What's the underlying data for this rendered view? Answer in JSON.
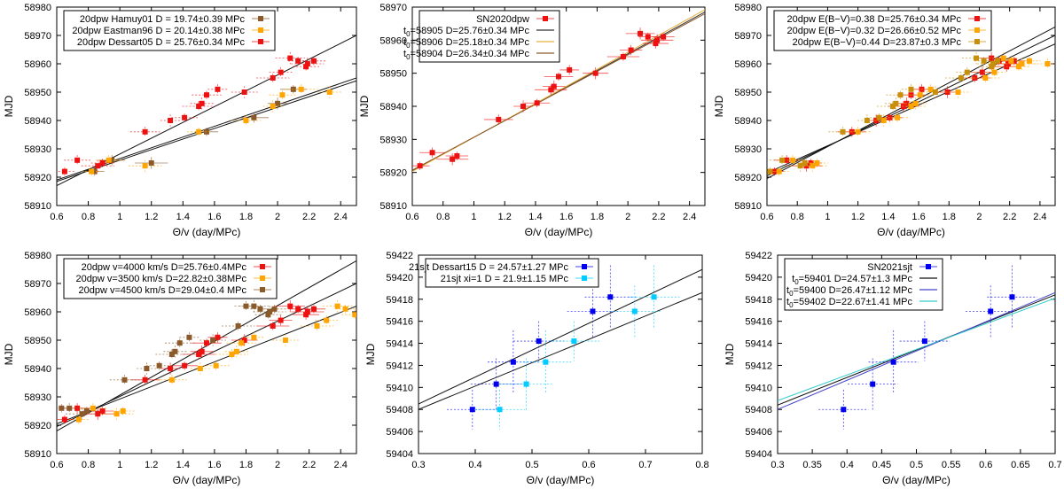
{
  "chart_data": [
    {
      "type": "scatter",
      "xlabel": "Θ/v (day/MPc)",
      "ylabel": "MJD",
      "xlim": [
        0.6,
        2.5
      ],
      "ylim": [
        58910,
        58980
      ],
      "xticks": [
        0.6,
        0.8,
        1,
        1.2,
        1.4,
        1.6,
        1.8,
        2,
        2.2,
        2.4
      ],
      "xtick_labels": [
        "0.6",
        "0.8",
        "1",
        "1.2",
        "1.4",
        "1.6",
        "1.8",
        "2",
        "2.2",
        "2.4"
      ],
      "yticks": [
        58910,
        58920,
        58930,
        58940,
        58950,
        58960,
        58970,
        58980
      ],
      "ytick_labels": [
        "58910",
        "58920",
        "58930",
        "58940",
        "58950",
        "58960",
        "58970",
        "58980"
      ],
      "grid": false,
      "legend_position": "top-left",
      "series": [
        {
          "name": "20dpw Hamuy01 D = 19.74±0.39 MPc",
          "kind": "points",
          "color": "#8b5a2b",
          "x": [
            0.84,
            0.95,
            1.2,
            1.55,
            1.85,
            2.0,
            2.1
          ],
          "y": [
            58922,
            58926,
            58925,
            58936,
            58941,
            58946,
            58951
          ]
        },
        {
          "name": "20dpw Eastman96 D = 20.14±0.38 MPc",
          "kind": "points",
          "color": "#ffa500",
          "x": [
            0.82,
            0.93,
            1.16,
            1.5,
            1.8,
            1.97,
            2.03,
            2.15,
            2.33
          ],
          "y": [
            58922,
            58926,
            58924,
            58936,
            58940,
            58945,
            58949,
            58951,
            58950
          ]
        },
        {
          "name": "20dpw Dessart05 D = 25.76±0.34 MPc",
          "kind": "points",
          "color": "#ee1111",
          "x": [
            0.65,
            0.73,
            0.86,
            0.89,
            1.16,
            1.32,
            1.41,
            1.5,
            1.52,
            1.55,
            1.62,
            1.79,
            1.97,
            2.02,
            2.08,
            2.13,
            2.18,
            2.19,
            2.23
          ],
          "y": [
            58922,
            58926,
            58924,
            58925,
            58936,
            58940,
            58941,
            58945,
            58946,
            58949,
            58951,
            58950,
            58955,
            58957,
            58962,
            58961,
            58959,
            58960,
            58961
          ]
        }
      ],
      "lines": [
        {
          "color": "#111111",
          "x": [
            0.6,
            2.5
          ],
          "y": [
            58917,
            58970
          ]
        },
        {
          "color": "#111111",
          "x": [
            0.6,
            2.5
          ],
          "y": [
            58919,
            58955
          ]
        },
        {
          "color": "#111111",
          "x": [
            0.6,
            2.5
          ],
          "y": [
            58918.5,
            58954
          ]
        }
      ]
    },
    {
      "type": "scatter",
      "xlabel": "Θ/v (day/MPc)",
      "ylabel": "MJD",
      "xlim": [
        0.6,
        2.5
      ],
      "ylim": [
        58910,
        58970
      ],
      "xticks": [
        0.6,
        0.8,
        1,
        1.2,
        1.4,
        1.6,
        1.8,
        2,
        2.2,
        2.4
      ],
      "xtick_labels": [
        "0.6",
        "0.8",
        "1",
        "1.2",
        "1.4",
        "1.6",
        "1.8",
        "2",
        "2.2",
        "2.4"
      ],
      "yticks": [
        58910,
        58920,
        58930,
        58940,
        58950,
        58960,
        58970
      ],
      "ytick_labels": [
        "58910",
        "58920",
        "58930",
        "58940",
        "58950",
        "58960",
        "58970"
      ],
      "grid": false,
      "legend_position": "top-left",
      "series": [
        {
          "name": "SN2020dpw",
          "kind": "points",
          "color": "#ee1111",
          "x": [
            0.65,
            0.73,
            0.86,
            0.89,
            1.16,
            1.32,
            1.41,
            1.5,
            1.52,
            1.55,
            1.62,
            1.79,
            1.97,
            2.02,
            2.08,
            2.13,
            2.18,
            2.19,
            2.23
          ],
          "y": [
            58922,
            58926,
            58924,
            58925,
            58936,
            58940,
            58941,
            58945,
            58946,
            58949,
            58951,
            58950,
            58955,
            58957,
            58962,
            58961,
            58959,
            58960,
            58961
          ]
        },
        {
          "name_prefix": "t",
          "name_sub": "0",
          "name_rest": "=58905 D=25.76±0.34 MPc",
          "kind": "line",
          "color": "#333333",
          "x": [
            0.6,
            2.5
          ],
          "y": [
            58920.5,
            58968.5
          ]
        },
        {
          "name_prefix": "t",
          "name_sub": "0",
          "name_rest": "=58906 D=25.18±0.34 MPc",
          "kind": "line",
          "color": "#e8b040",
          "x": [
            0.6,
            2.5
          ],
          "y": [
            58920.3,
            58969.2
          ]
        },
        {
          "name_prefix": "t",
          "name_sub": "0",
          "name_rest": "=58904 D=26.34±0.34 MPc",
          "kind": "line",
          "color": "#8b5a2b",
          "x": [
            0.6,
            2.5
          ],
          "y": [
            58920.7,
            58968
          ]
        }
      ]
    },
    {
      "type": "scatter",
      "xlabel": "Θ/v (day/MPc)",
      "ylabel": "MJD",
      "xlim": [
        0.6,
        2.5
      ],
      "ylim": [
        58910,
        58980
      ],
      "xticks": [
        0.6,
        0.8,
        1,
        1.2,
        1.4,
        1.6,
        1.8,
        2,
        2.2,
        2.4
      ],
      "xtick_labels": [
        "0.6",
        "0.8",
        "1",
        "1.2",
        "1.4",
        "1.6",
        "1.8",
        "2",
        "2.2",
        "2.4"
      ],
      "yticks": [
        58910,
        58920,
        58930,
        58940,
        58950,
        58960,
        58970,
        58980
      ],
      "ytick_labels": [
        "58910",
        "58920",
        "58930",
        "58940",
        "58950",
        "58960",
        "58970",
        "58980"
      ],
      "grid": false,
      "legend_position": "top-left",
      "series": [
        {
          "name": "20dpw E(B−V)=0.38 D=25.76±0.34 MPc",
          "kind": "points",
          "color": "#ee1111",
          "x": [
            0.65,
            0.73,
            0.86,
            0.89,
            1.16,
            1.32,
            1.41,
            1.5,
            1.52,
            1.55,
            1.62,
            1.79,
            1.97,
            2.02,
            2.08,
            2.13,
            2.18,
            2.19,
            2.23
          ],
          "y": [
            58922,
            58926,
            58924,
            58925,
            58936,
            58940,
            58941,
            58945,
            58946,
            58949,
            58951,
            58950,
            58955,
            58957,
            58962,
            58961,
            58959,
            58960,
            58961
          ]
        },
        {
          "name": "20dpw E(B−V)=0.32 D=26.66±0.52 MPc",
          "kind": "points",
          "color": "#ffa500",
          "x": [
            0.68,
            0.77,
            0.9,
            0.93,
            1.2,
            1.37,
            1.46,
            1.55,
            1.58,
            1.61,
            1.68,
            1.86,
            2.04,
            2.1,
            2.16,
            2.21,
            2.26,
            2.28,
            2.33,
            2.45
          ],
          "y": [
            58922,
            58926,
            58924,
            58925,
            58936,
            58940,
            58941,
            58945,
            58946,
            58949,
            58951,
            58950,
            58955,
            58957,
            58962,
            58961,
            58959,
            58960,
            58961,
            58960
          ]
        },
        {
          "name": "20dpw E(B−V)=0.44 D=23.87±0.3 MPc",
          "kind": "points",
          "color": "#c8900a",
          "x": [
            0.62,
            0.7,
            0.82,
            0.85,
            1.1,
            1.26,
            1.34,
            1.43,
            1.45,
            1.48,
            1.55,
            1.71,
            1.88,
            1.92,
            1.98,
            2.03,
            2.08,
            2.09,
            2.12
          ],
          "y": [
            58922,
            58926,
            58924,
            58925,
            58936,
            58940,
            58941,
            58945,
            58946,
            58949,
            58951,
            58950,
            58955,
            58957,
            58962,
            58961,
            58959,
            58960,
            58961
          ]
        }
      ],
      "lines": [
        {
          "color": "#111111",
          "x": [
            0.6,
            2.5
          ],
          "y": [
            58919.5,
            58973
          ]
        },
        {
          "color": "#111111",
          "x": [
            0.6,
            2.5
          ],
          "y": [
            58920.5,
            58970
          ]
        },
        {
          "color": "#111111",
          "x": [
            0.6,
            2.5
          ],
          "y": [
            58921.5,
            58967
          ]
        }
      ]
    },
    {
      "type": "scatter",
      "xlabel": "Θ/v (day/MPc)",
      "ylabel": "MJD",
      "xlim": [
        0.6,
        2.5
      ],
      "ylim": [
        58910,
        58980
      ],
      "xticks": [
        0.6,
        0.8,
        1,
        1.2,
        1.4,
        1.6,
        1.8,
        2,
        2.2,
        2.4
      ],
      "xtick_labels": [
        "0.6",
        "0.8",
        "1",
        "1.2",
        "1.4",
        "1.6",
        "1.8",
        "2",
        "2.2",
        "2.4"
      ],
      "yticks": [
        58910,
        58920,
        58930,
        58940,
        58950,
        58960,
        58970,
        58980
      ],
      "ytick_labels": [
        "58910",
        "58920",
        "58930",
        "58940",
        "58950",
        "58960",
        "58970",
        "58980"
      ],
      "grid": false,
      "legend_position": "top-left",
      "series": [
        {
          "name": "20dpw v=4000 km/s D=25.76±0.4MPc",
          "kind": "points",
          "color": "#ee1111",
          "x": [
            0.65,
            0.73,
            0.86,
            0.89,
            1.16,
            1.32,
            1.41,
            1.5,
            1.52,
            1.55,
            1.62,
            1.79,
            1.97,
            2.02,
            2.08,
            2.13,
            2.18,
            2.19,
            2.23
          ],
          "y": [
            58922,
            58926,
            58924,
            58925,
            58936,
            58940,
            58941,
            58945,
            58946,
            58949,
            58951,
            58950,
            58955,
            58957,
            58962,
            58961,
            58959,
            58960,
            58961
          ]
        },
        {
          "name": "20dpw v=3500 km/s D=22.82±0.38MPc",
          "kind": "points",
          "color": "#ffa500",
          "x": [
            0.74,
            0.83,
            0.98,
            1.02,
            1.33,
            1.51,
            1.61,
            1.71,
            1.74,
            1.77,
            1.85,
            2.05,
            2.25,
            2.31,
            2.38,
            2.43,
            2.49
          ],
          "y": [
            58922,
            58926,
            58924,
            58925,
            58936,
            58940,
            58941,
            58945,
            58946,
            58949,
            58951,
            58950,
            58955,
            58957,
            58962,
            58961,
            58959
          ]
        },
        {
          "name": "20dpw v=4500 km/s D=29.04±0.4 MPc",
          "kind": "points",
          "color": "#8b5a2b",
          "x": [
            0.63,
            0.68,
            0.76,
            0.79,
            1.03,
            1.17,
            1.25,
            1.33,
            1.35,
            1.38,
            1.44,
            1.59,
            1.75,
            1.8,
            1.85,
            1.89,
            1.94,
            1.95,
            1.98
          ],
          "y": [
            58926,
            58926,
            58924,
            58925,
            58936,
            58940,
            58941,
            58945,
            58946,
            58949,
            58951,
            58950,
            58955,
            58962,
            58962,
            58961,
            58959,
            58960,
            58961
          ]
        }
      ],
      "lines": [
        {
          "color": "#111111",
          "x": [
            0.6,
            2.5
          ],
          "y": [
            58918,
            58978
          ]
        },
        {
          "color": "#111111",
          "x": [
            0.6,
            2.5
          ],
          "y": [
            58919.5,
            58970
          ]
        },
        {
          "color": "#111111",
          "x": [
            0.6,
            2.5
          ],
          "y": [
            58920.5,
            58962
          ]
        }
      ]
    },
    {
      "type": "scatter",
      "xlabel": "Θ/v (day/MPc)",
      "ylabel": "MJD",
      "xlim": [
        0.3,
        0.8
      ],
      "ylim": [
        59404,
        59422
      ],
      "xticks": [
        0.3,
        0.4,
        0.5,
        0.6,
        0.7,
        0.8
      ],
      "xtick_labels": [
        "0.3",
        "0.4",
        "0.5",
        "0.6",
        "0.7",
        "0.8"
      ],
      "yticks": [
        59404,
        59406,
        59408,
        59410,
        59412,
        59414,
        59416,
        59418,
        59420,
        59422
      ],
      "ytick_labels": [
        "59404",
        "59406",
        "59408",
        "59410",
        "59412",
        "59414",
        "59416",
        "59418",
        "59420",
        "59422"
      ],
      "grid": false,
      "legend_position": "top-left",
      "series": [
        {
          "name": "21sjt Dessart15 D = 24.57±1.27 MPc",
          "kind": "points",
          "color": "#0000ee",
          "x": [
            0.395,
            0.437,
            0.467,
            0.512,
            0.607,
            0.638
          ],
          "y": [
            59408,
            59410.3,
            59412.3,
            59414.2,
            59416.9,
            59418.2
          ]
        },
        {
          "name": "21sjt xi=1 D = 21.9±1.15 MPc",
          "kind": "points",
          "color": "#00ccff",
          "x": [
            0.443,
            0.49,
            0.524,
            0.574,
            0.681,
            0.715
          ],
          "y": [
            59408,
            59410.3,
            59412.3,
            59414.2,
            59416.9,
            59418.2
          ]
        }
      ],
      "lines": [
        {
          "color": "#111111",
          "x": [
            0.3,
            0.8
          ],
          "y": [
            59408.5,
            59420.7
          ]
        },
        {
          "color": "#111111",
          "x": [
            0.3,
            0.8
          ],
          "y": [
            59408,
            59418.6
          ]
        }
      ]
    },
    {
      "type": "scatter",
      "xlabel": "Θ/v (day/MPc)",
      "ylabel": "MJD",
      "xlim": [
        0.3,
        0.7
      ],
      "ylim": [
        59404,
        59422
      ],
      "xticks": [
        0.3,
        0.35,
        0.4,
        0.45,
        0.5,
        0.55,
        0.6,
        0.65,
        0.7
      ],
      "xtick_labels": [
        "0.3",
        "0.35",
        "0.4",
        "0.45",
        "0.5",
        "0.55",
        "0.6",
        "0.65",
        "0.7"
      ],
      "yticks": [
        59404,
        59406,
        59408,
        59410,
        59412,
        59414,
        59416,
        59418,
        59420,
        59422
      ],
      "ytick_labels": [
        "59404",
        "59406",
        "59408",
        "59410",
        "59412",
        "59414",
        "59416",
        "59418",
        "59420",
        "59422"
      ],
      "grid": false,
      "legend_position": "top-left",
      "series": [
        {
          "name": "SN2021sjt",
          "kind": "points",
          "color": "#0000ee",
          "x": [
            0.395,
            0.437,
            0.467,
            0.512,
            0.607,
            0.638
          ],
          "y": [
            59408,
            59410.3,
            59412.3,
            59414.2,
            59416.9,
            59418.2
          ]
        },
        {
          "name_prefix": "t",
          "name_sub": "0",
          "name_rest": "=59401 D=24.57±1.3 MPc",
          "kind": "line",
          "color": "#111111",
          "x": [
            0.3,
            0.7
          ],
          "y": [
            59408.4,
            59418.4
          ]
        },
        {
          "name_prefix": "t",
          "name_sub": "0",
          "name_rest": "=59400 D=26.47±1.12 MPc",
          "kind": "line",
          "color": "#4444cc",
          "x": [
            0.3,
            0.7
          ],
          "y": [
            59408.0,
            59418.6
          ]
        },
        {
          "name_prefix": "t",
          "name_sub": "0",
          "name_rest": "=59402 D=22.67±1.41 MPc",
          "kind": "line",
          "color": "#33cccc",
          "x": [
            0.3,
            0.7
          ],
          "y": [
            59408.8,
            59418.1
          ]
        }
      ]
    }
  ]
}
